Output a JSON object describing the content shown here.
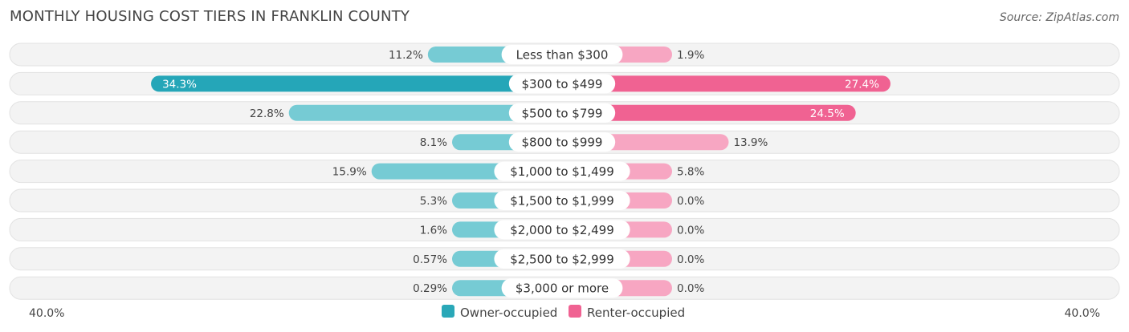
{
  "title": "MONTHLY HOUSING COST TIERS IN FRANKLIN COUNTY",
  "source": "Source: ZipAtlas.com",
  "chart_data": {
    "type": "bar",
    "orientation": "diverging-horizontal",
    "categories": [
      "Less than $300",
      "$300 to $499",
      "$500 to $799",
      "$800 to $999",
      "$1,000 to $1,499",
      "$1,500 to $1,999",
      "$2,000 to $2,499",
      "$2,500 to $2,999",
      "$3,000 or more"
    ],
    "series": [
      {
        "name": "Owner-occupied",
        "color": "#2aa8b8",
        "values": [
          11.2,
          34.3,
          22.8,
          8.1,
          15.9,
          5.3,
          1.6,
          0.57,
          0.29
        ],
        "labels": [
          "11.2%",
          "34.3%",
          "22.8%",
          "8.1%",
          "15.9%",
          "5.3%",
          "1.6%",
          "0.57%",
          "0.29%"
        ]
      },
      {
        "name": "Renter-occupied",
        "color": "#f06292",
        "values": [
          1.9,
          27.4,
          24.5,
          13.9,
          5.8,
          0.0,
          0.0,
          0.0,
          0.0
        ],
        "labels": [
          "1.9%",
          "27.4%",
          "24.5%",
          "13.9%",
          "5.8%",
          "0.0%",
          "0.0%",
          "0.0%",
          "0.0%"
        ]
      }
    ],
    "axis": {
      "left_label": "40.0%",
      "right_label": "40.0%",
      "max": 40.0
    },
    "legend": {
      "placement": "bottom-center"
    }
  }
}
